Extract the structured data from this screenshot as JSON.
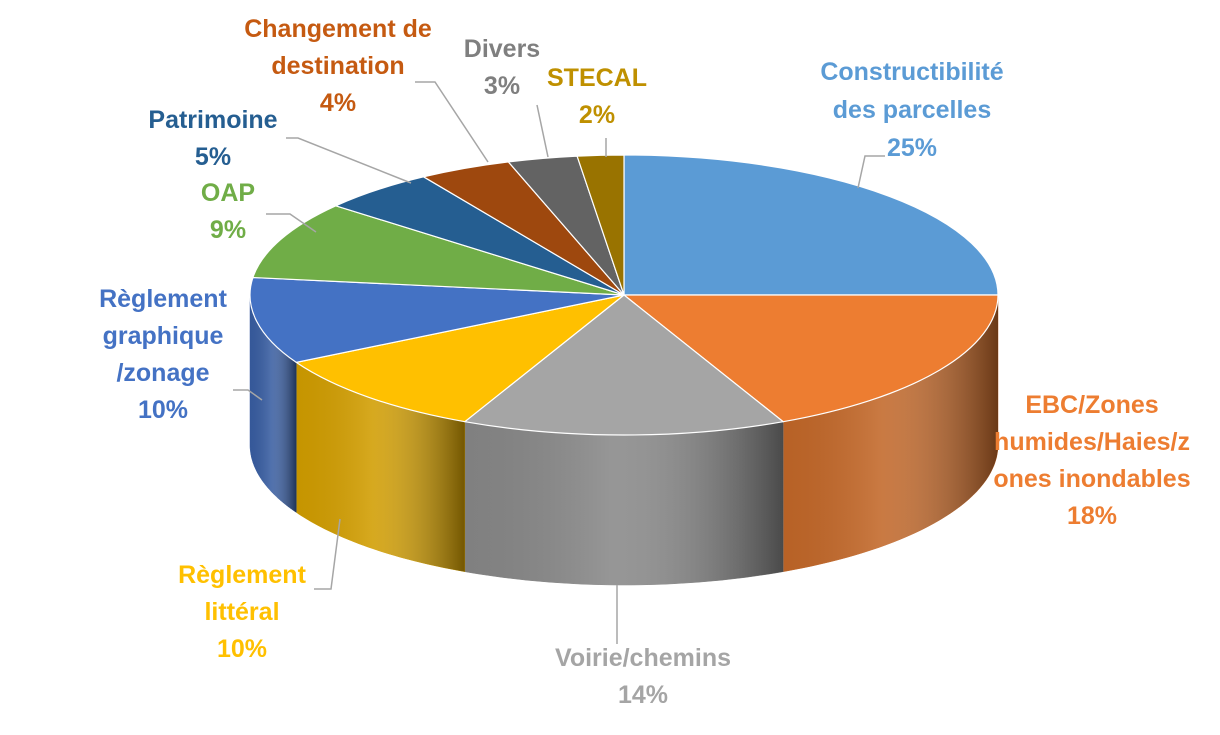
{
  "chart_data": {
    "type": "pie",
    "style": "3d",
    "title": "",
    "slices": [
      {
        "label_lines": [
          "Constructibilité",
          "des parcelles"
        ],
        "value": 25,
        "value_label": "25%",
        "color": "#5B9BD5"
      },
      {
        "label_lines": [
          "EBC/Zones",
          "humides/Haies/z",
          "ones inondables"
        ],
        "value": 18,
        "value_label": "18%",
        "color": "#ED7D31"
      },
      {
        "label_lines": [
          "Voirie/chemins"
        ],
        "value": 14,
        "value_label": "14%",
        "color": "#A5A5A5"
      },
      {
        "label_lines": [
          "Règlement",
          "littéral"
        ],
        "value": 10,
        "value_label": "10%",
        "color": "#FFC000"
      },
      {
        "label_lines": [
          "Règlement",
          "graphique",
          "/zonage"
        ],
        "value": 10,
        "value_label": "10%",
        "color": "#4472C4"
      },
      {
        "label_lines": [
          "OAP"
        ],
        "value": 9,
        "value_label": "9%",
        "color": "#70AD47"
      },
      {
        "label_lines": [
          "Patrimoine"
        ],
        "value": 5,
        "value_label": "5%",
        "color": "#255E91"
      },
      {
        "label_lines": [
          "Changement de",
          "destination"
        ],
        "value": 4,
        "value_label": "4%",
        "color": "#9E480E"
      },
      {
        "label_lines": [
          "Divers"
        ],
        "value": 3,
        "value_label": "3%",
        "color": "#636363"
      },
      {
        "label_lines": [
          "STECAL"
        ],
        "value": 2,
        "value_label": "2%",
        "color": "#997300"
      }
    ],
    "label_colors": [
      "#5B9BD5",
      "#ED7D31",
      "#A5A5A5",
      "#FFC000",
      "#4472C4",
      "#70AD47",
      "#255E91",
      "#C55A11",
      "#7F7F7F",
      "#BF9000"
    ],
    "legend": "none",
    "start": "top"
  }
}
